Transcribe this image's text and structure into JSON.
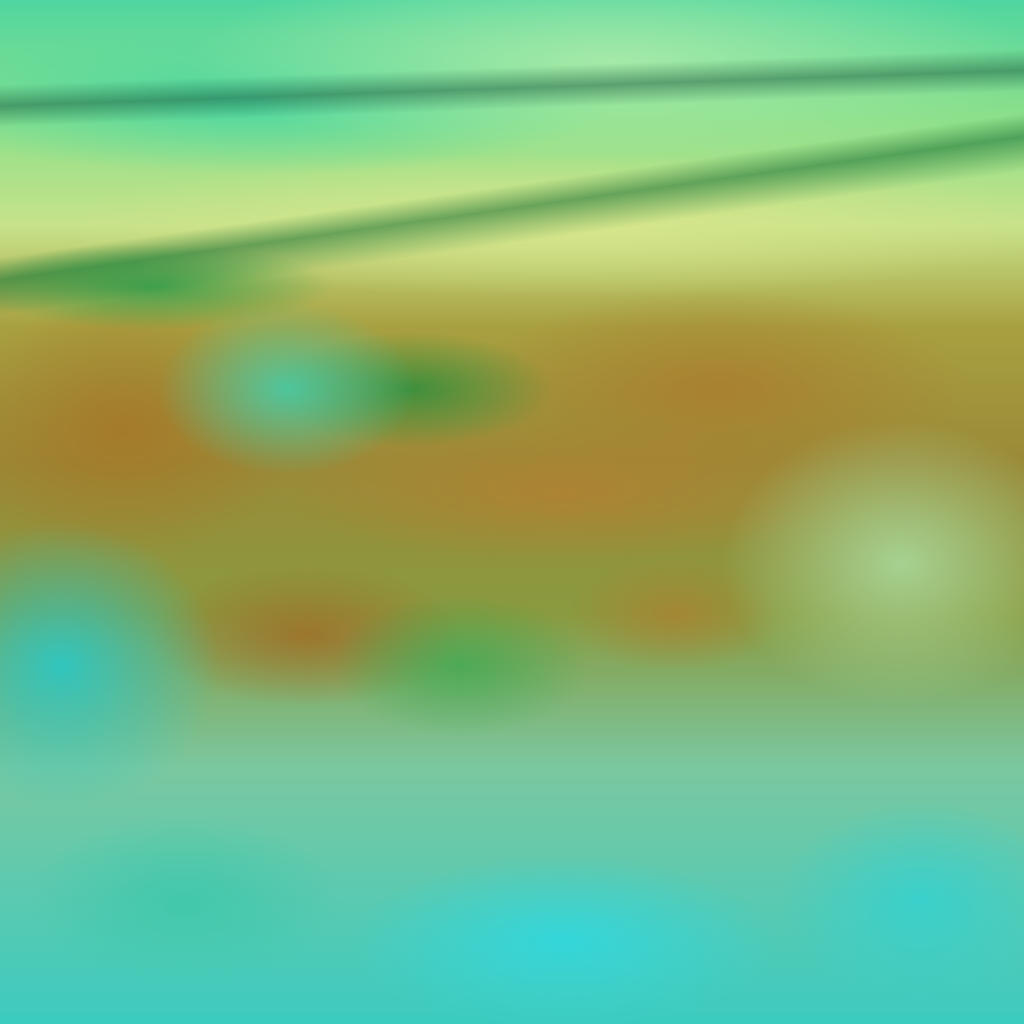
{
  "image": {
    "kind": "false-color satellite imagery",
    "palette": {
      "cloud_top": "#9fe49a",
      "dust_band": "#d4e290",
      "desert": "#a88338",
      "vegetation": "#1f9a4a",
      "water_cloud": "#3ccfd0"
    }
  }
}
